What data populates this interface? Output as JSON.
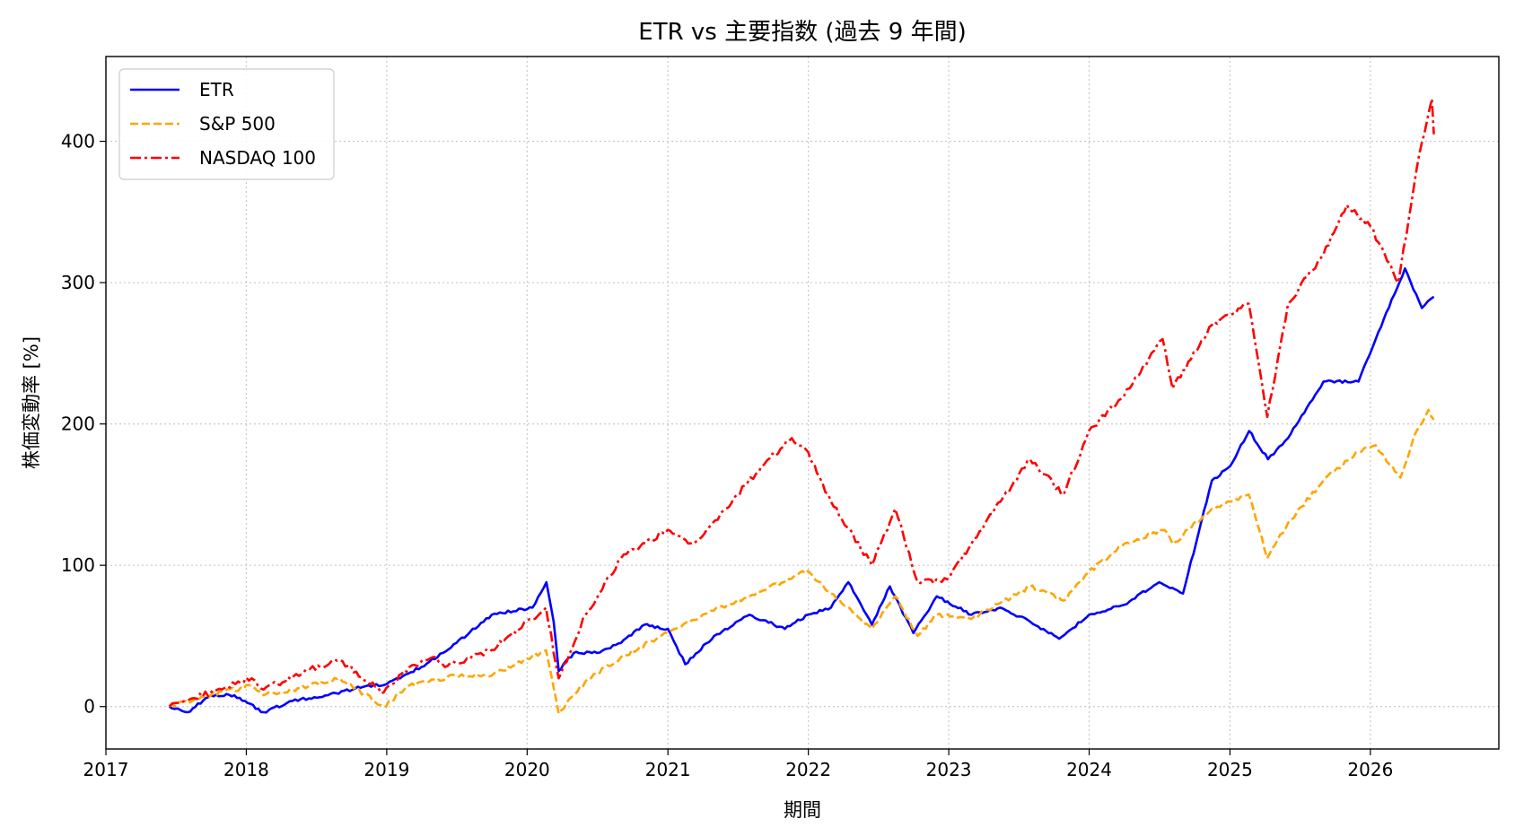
{
  "chart_data": {
    "type": "line",
    "title": "ETR vs 主要指数 (過去 9 年間)",
    "xlabel": "期間",
    "ylabel": "株価変動率 [%]",
    "xlim": [
      "2017-01-01",
      "2026-12-01"
    ],
    "ylim": [
      -30,
      460
    ],
    "x_ticks": [
      "2017",
      "2018",
      "2019",
      "2020",
      "2021",
      "2022",
      "2023",
      "2024",
      "2025",
      "2026"
    ],
    "y_ticks": [
      0,
      100,
      200,
      300,
      400
    ],
    "grid": true,
    "legend_position": "top-left",
    "series": [
      {
        "name": "ETR",
        "color": "#0000ff",
        "dash": "solid",
        "points": [
          [
            "2017-06-15",
            0
          ],
          [
            "2017-08-01",
            -4
          ],
          [
            "2017-10-01",
            8
          ],
          [
            "2017-12-01",
            8
          ],
          [
            "2018-02-15",
            -4
          ],
          [
            "2018-05-01",
            4
          ],
          [
            "2018-08-01",
            8
          ],
          [
            "2018-11-01",
            14
          ],
          [
            "2019-01-01",
            16
          ],
          [
            "2019-04-01",
            28
          ],
          [
            "2019-07-01",
            45
          ],
          [
            "2019-10-01",
            65
          ],
          [
            "2020-01-15",
            70
          ],
          [
            "2020-02-20",
            88
          ],
          [
            "2020-03-10",
            60
          ],
          [
            "2020-03-23",
            25
          ],
          [
            "2020-05-01",
            38
          ],
          [
            "2020-07-01",
            38
          ],
          [
            "2020-09-01",
            45
          ],
          [
            "2020-11-01",
            58
          ],
          [
            "2021-01-01",
            55
          ],
          [
            "2021-02-15",
            30
          ],
          [
            "2021-05-01",
            50
          ],
          [
            "2021-08-01",
            65
          ],
          [
            "2021-11-01",
            55
          ],
          [
            "2022-01-01",
            65
          ],
          [
            "2022-03-01",
            70
          ],
          [
            "2022-04-15",
            88
          ],
          [
            "2022-06-15",
            58
          ],
          [
            "2022-08-01",
            85
          ],
          [
            "2022-10-01",
            52
          ],
          [
            "2022-12-01",
            78
          ],
          [
            "2023-03-01",
            65
          ],
          [
            "2023-05-15",
            70
          ],
          [
            "2023-08-01",
            60
          ],
          [
            "2023-10-15",
            48
          ],
          [
            "2024-01-01",
            65
          ],
          [
            "2024-04-01",
            72
          ],
          [
            "2024-07-01",
            88
          ],
          [
            "2024-09-01",
            80
          ],
          [
            "2024-11-15",
            160
          ],
          [
            "2025-01-01",
            170
          ],
          [
            "2025-02-20",
            195
          ],
          [
            "2025-04-10",
            175
          ],
          [
            "2025-06-01",
            190
          ],
          [
            "2025-09-01",
            230
          ],
          [
            "2025-12-01",
            230
          ],
          [
            "2026-01-15",
            260
          ],
          [
            "2026-04-01",
            310
          ],
          [
            "2026-05-15",
            282
          ],
          [
            "2026-06-15",
            290
          ]
        ]
      },
      {
        "name": "S&P 500",
        "color": "#ffa500",
        "dash": "dashed",
        "points": [
          [
            "2017-06-15",
            0
          ],
          [
            "2017-10-01",
            8
          ],
          [
            "2018-01-15",
            15
          ],
          [
            "2018-02-15",
            8
          ],
          [
            "2018-05-01",
            12
          ],
          [
            "2018-09-01",
            20
          ],
          [
            "2018-12-24",
            0
          ],
          [
            "2019-03-01",
            15
          ],
          [
            "2019-07-01",
            22
          ],
          [
            "2019-10-01",
            22
          ],
          [
            "2020-02-19",
            40
          ],
          [
            "2020-03-23",
            -5
          ],
          [
            "2020-06-01",
            18
          ],
          [
            "2020-09-01",
            35
          ],
          [
            "2020-12-31",
            52
          ],
          [
            "2021-04-01",
            65
          ],
          [
            "2021-08-01",
            78
          ],
          [
            "2021-12-31",
            96
          ],
          [
            "2022-03-01",
            80
          ],
          [
            "2022-06-15",
            55
          ],
          [
            "2022-08-15",
            78
          ],
          [
            "2022-10-12",
            50
          ],
          [
            "2022-12-01",
            65
          ],
          [
            "2023-03-01",
            62
          ],
          [
            "2023-07-31",
            85
          ],
          [
            "2023-10-27",
            75
          ],
          [
            "2023-12-31",
            95
          ],
          [
            "2024-03-31",
            115
          ],
          [
            "2024-07-15",
            125
          ],
          [
            "2024-08-05",
            115
          ],
          [
            "2024-11-15",
            140
          ],
          [
            "2025-02-19",
            150
          ],
          [
            "2025-04-08",
            105
          ],
          [
            "2025-06-01",
            130
          ],
          [
            "2025-09-01",
            160
          ],
          [
            "2025-12-01",
            180
          ],
          [
            "2026-01-15",
            185
          ],
          [
            "2026-03-20",
            162
          ],
          [
            "2026-05-01",
            195
          ],
          [
            "2026-06-01",
            210
          ],
          [
            "2026-06-15",
            203
          ]
        ]
      },
      {
        "name": "NASDAQ 100",
        "color": "#ff0000",
        "dash": "dashdot",
        "points": [
          [
            "2017-06-15",
            0
          ],
          [
            "2017-10-01",
            10
          ],
          [
            "2018-01-15",
            20
          ],
          [
            "2018-02-15",
            12
          ],
          [
            "2018-06-01",
            25
          ],
          [
            "2018-09-01",
            33
          ],
          [
            "2018-12-24",
            10
          ],
          [
            "2019-03-01",
            28
          ],
          [
            "2019-05-01",
            35
          ],
          [
            "2019-06-01",
            28
          ],
          [
            "2019-10-01",
            40
          ],
          [
            "2020-02-19",
            70
          ],
          [
            "2020-03-23",
            20
          ],
          [
            "2020-06-01",
            65
          ],
          [
            "2020-09-01",
            105
          ],
          [
            "2020-12-31",
            125
          ],
          [
            "2021-03-08",
            115
          ],
          [
            "2021-06-01",
            140
          ],
          [
            "2021-09-01",
            170
          ],
          [
            "2021-11-19",
            190
          ],
          [
            "2022-01-01",
            180
          ],
          [
            "2022-03-01",
            145
          ],
          [
            "2022-06-15",
            100
          ],
          [
            "2022-08-15",
            140
          ],
          [
            "2022-10-12",
            88
          ],
          [
            "2022-12-28",
            90
          ],
          [
            "2023-03-01",
            115
          ],
          [
            "2023-07-31",
            175
          ],
          [
            "2023-10-27",
            150
          ],
          [
            "2023-12-31",
            195
          ],
          [
            "2024-04-01",
            220
          ],
          [
            "2024-07-10",
            260
          ],
          [
            "2024-08-05",
            225
          ],
          [
            "2024-11-15",
            270
          ],
          [
            "2025-02-19",
            285
          ],
          [
            "2025-04-08",
            205
          ],
          [
            "2025-06-01",
            285
          ],
          [
            "2025-09-01",
            320
          ],
          [
            "2025-11-01",
            355
          ],
          [
            "2026-01-01",
            340
          ],
          [
            "2026-03-15",
            300
          ],
          [
            "2026-05-01",
            380
          ],
          [
            "2026-06-10",
            430
          ],
          [
            "2026-06-15",
            405
          ]
        ]
      }
    ]
  }
}
